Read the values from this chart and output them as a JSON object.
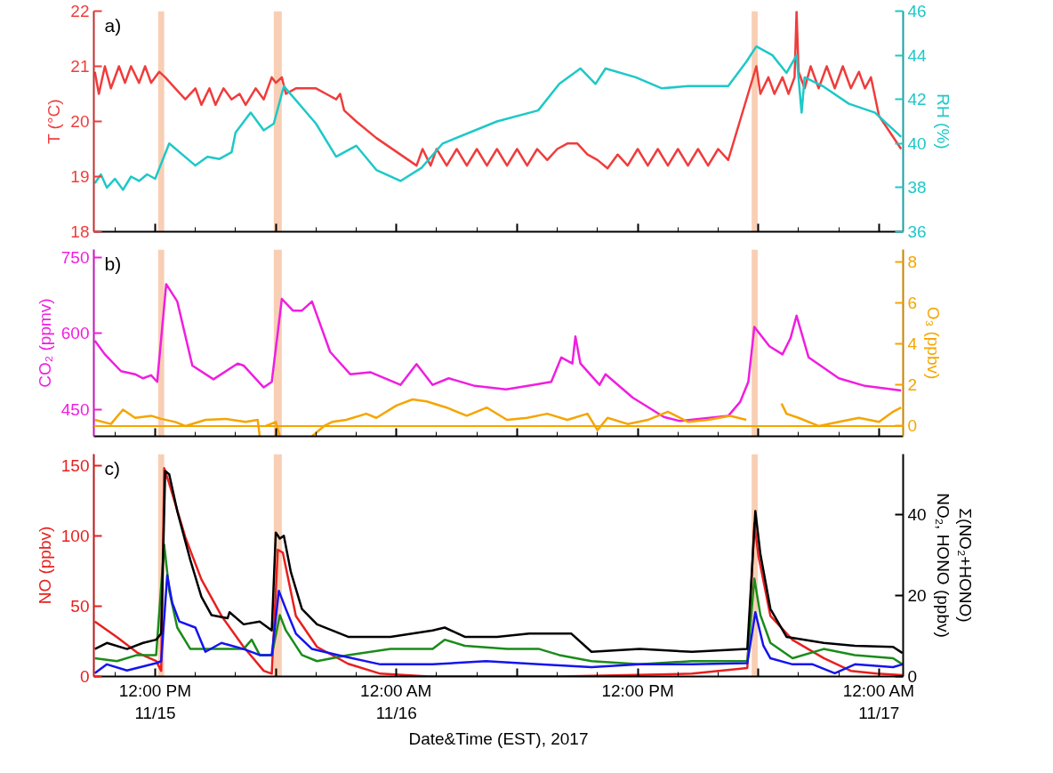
{
  "chart_data": [
    {
      "type": "line",
      "ylabel": "T (°C)",
      "y2label": "RH (%)",
      "annotations": [
        "a)"
      ],
      "tick_labels": "y",
      "xlim": [
        "2017-11-15T08:57",
        "2017-11-17T01:12"
      ],
      "xticks": [
        {
          "value": "2017-11-15T12:00",
          "label": null
        },
        {
          "value": "2017-11-15T18:00",
          "label": null
        },
        {
          "value": "2017-11-16T00:00",
          "label": null
        },
        {
          "value": "2017-11-16T06:00",
          "label": null
        },
        {
          "value": "2017-11-16T12:00",
          "label": null
        },
        {
          "value": "2017-11-16T18:00",
          "label": null
        },
        {
          "value": "2017-11-17T00:00",
          "label": null
        }
      ],
      "ylim": [
        18,
        22
      ],
      "yticks": [
        18,
        19,
        20,
        21,
        22
      ],
      "y2lim": [
        36,
        46
      ],
      "y2ticks": [
        36,
        38,
        40,
        42,
        44,
        46
      ],
      "bands": [
        {
          "axis": "x",
          "from": "2017-11-15T12:09",
          "to": "2017-11-15T12:27",
          "label": null,
          "color": "#f8cfb4"
        },
        {
          "axis": "x",
          "from": "2017-11-15T17:54",
          "to": "2017-11-15T18:18",
          "label": null,
          "color": "#f8cfb4"
        },
        {
          "axis": "x",
          "from": "2017-11-16T17:40",
          "to": "2017-11-16T17:58",
          "label": null,
          "color": "#f8cfb4"
        }
      ],
      "series": [
        {
          "color": "#f03c3c",
          "x": [
            "2017-11-15T09:00",
            "2017-11-15T09:12",
            "2017-11-15T09:30",
            "2017-11-15T09:48",
            "2017-11-15T10:12",
            "2017-11-15T10:30",
            "2017-11-15T10:48",
            "2017-11-15T11:12",
            "2017-11-15T11:30",
            "2017-11-15T11:48",
            "2017-11-15T12:12",
            "2017-11-15T12:30",
            "2017-11-15T13:00",
            "2017-11-15T13:30",
            "2017-11-15T14:00",
            "2017-11-15T14:18",
            "2017-11-15T14:42",
            "2017-11-15T15:00",
            "2017-11-15T15:24",
            "2017-11-15T15:48",
            "2017-11-15T16:12",
            "2017-11-15T16:30",
            "2017-11-15T17:00",
            "2017-11-15T17:24",
            "2017-11-15T17:48",
            "2017-11-15T18:00",
            "2017-11-15T18:18",
            "2017-11-15T18:30",
            "2017-11-15T19:00",
            "2017-11-15T20:00",
            "2017-11-15T20:30",
            "2017-11-15T21:00",
            "2017-11-15T21:12",
            "2017-11-15T21:24",
            "2017-11-15T22:00",
            "2017-11-15T23:00",
            "2017-11-16T00:00",
            "2017-11-16T01:00",
            "2017-11-16T01:18",
            "2017-11-16T01:42",
            "2017-11-16T02:00",
            "2017-11-16T02:30",
            "2017-11-16T03:00",
            "2017-11-16T03:30",
            "2017-11-16T04:00",
            "2017-11-16T04:30",
            "2017-11-16T05:00",
            "2017-11-16T05:30",
            "2017-11-16T06:00",
            "2017-11-16T06:30",
            "2017-11-16T07:00",
            "2017-11-16T07:30",
            "2017-11-16T08:00",
            "2017-11-16T08:30",
            "2017-11-16T09:00",
            "2017-11-16T09:30",
            "2017-11-16T10:00",
            "2017-11-16T10:30",
            "2017-11-16T11:00",
            "2017-11-16T11:30",
            "2017-11-16T12:00",
            "2017-11-16T12:30",
            "2017-11-16T13:00",
            "2017-11-16T13:30",
            "2017-11-16T14:00",
            "2017-11-16T14:30",
            "2017-11-16T15:00",
            "2017-11-16T15:30",
            "2017-11-16T16:00",
            "2017-11-16T16:30",
            "2017-11-16T17:54",
            "2017-11-16T18:06",
            "2017-11-16T18:30",
            "2017-11-16T18:48",
            "2017-11-16T19:12",
            "2017-11-16T19:30",
            "2017-11-16T19:48",
            "2017-11-16T19:54",
            "2017-11-16T20:00",
            "2017-11-16T20:18",
            "2017-11-16T20:36",
            "2017-11-16T21:00",
            "2017-11-16T21:24",
            "2017-11-16T21:48",
            "2017-11-16T22:12",
            "2017-11-16T22:36",
            "2017-11-16T23:00",
            "2017-11-16T23:18",
            "2017-11-16T23:36",
            "2017-11-17T00:00",
            "2017-11-17T01:06"
          ],
          "values": [
            20.9,
            20.5,
            21.0,
            20.6,
            21.0,
            20.7,
            21.0,
            20.7,
            21.0,
            20.7,
            20.9,
            20.8,
            20.6,
            20.4,
            20.6,
            20.3,
            20.6,
            20.3,
            20.6,
            20.4,
            20.5,
            20.3,
            20.6,
            20.4,
            20.8,
            20.7,
            20.8,
            20.5,
            20.6,
            20.6,
            20.5,
            20.4,
            20.5,
            20.2,
            20.0,
            19.7,
            19.45,
            19.2,
            19.5,
            19.2,
            19.5,
            19.2,
            19.5,
            19.2,
            19.5,
            19.2,
            19.5,
            19.2,
            19.5,
            19.2,
            19.5,
            19.3,
            19.5,
            19.6,
            19.6,
            19.4,
            19.3,
            19.15,
            19.4,
            19.2,
            19.5,
            19.2,
            19.5,
            19.2,
            19.5,
            19.2,
            19.5,
            19.2,
            19.5,
            19.3,
            21.0,
            20.5,
            20.8,
            20.5,
            20.8,
            20.5,
            20.8,
            22.0,
            20.9,
            20.6,
            21.0,
            20.6,
            21.0,
            20.6,
            21.0,
            20.6,
            20.9,
            20.6,
            20.8,
            20.1,
            19.5
          ]
        },
        {
          "color": "#1ec8c8",
          "axis": "y2",
          "x": [
            "2017-11-15T09:00",
            "2017-11-15T09:18",
            "2017-11-15T09:36",
            "2017-11-15T10:00",
            "2017-11-15T10:24",
            "2017-11-15T10:48",
            "2017-11-15T11:12",
            "2017-11-15T11:36",
            "2017-11-15T12:00",
            "2017-11-15T12:42",
            "2017-11-15T14:00",
            "2017-11-15T14:36",
            "2017-11-15T15:12",
            "2017-11-15T15:36",
            "2017-11-15T15:48",
            "2017-11-15T16:00",
            "2017-11-15T16:45",
            "2017-11-15T17:24",
            "2017-11-15T17:54",
            "2017-11-15T18:24",
            "2017-11-15T20:00",
            "2017-11-15T21:00",
            "2017-11-15T22:00",
            "2017-11-15T23:00",
            "2017-11-16T00:12",
            "2017-11-16T01:15",
            "2017-11-16T02:18",
            "2017-11-16T05:00",
            "2017-11-16T07:03",
            "2017-11-16T08:06",
            "2017-11-16T09:09",
            "2017-11-16T09:54",
            "2017-11-16T10:24",
            "2017-11-16T11:54",
            "2017-11-16T13:12",
            "2017-11-16T14:30",
            "2017-11-16T16:30",
            "2017-11-16T17:24",
            "2017-11-16T17:54",
            "2017-11-16T18:42",
            "2017-11-16T19:24",
            "2017-11-16T19:54",
            "2017-11-16T20:09",
            "2017-11-16T20:18",
            "2017-11-16T21:12",
            "2017-11-16T22:30",
            "2017-11-16T23:48",
            "2017-11-17T01:06"
          ],
          "values": [
            38.2,
            38.6,
            38.0,
            38.4,
            37.9,
            38.5,
            38.3,
            38.6,
            38.4,
            40.0,
            39.0,
            39.4,
            39.3,
            39.5,
            39.6,
            40.5,
            41.4,
            40.6,
            40.9,
            42.6,
            40.9,
            39.4,
            39.9,
            38.8,
            38.3,
            38.9,
            40.0,
            41.0,
            41.5,
            42.7,
            43.4,
            42.7,
            43.4,
            43.0,
            42.5,
            42.6,
            42.6,
            43.7,
            44.4,
            44.0,
            43.2,
            44.0,
            41.4,
            43.0,
            42.6,
            41.8,
            41.4,
            40.3
          ]
        }
      ]
    },
    {
      "type": "line",
      "ylabel": "CO₂ (ppmv)",
      "y2label": "O₃ (ppbv)",
      "annotations": [
        "b)"
      ],
      "tick_labels": "y",
      "xlim": [
        "2017-11-15T08:57",
        "2017-11-17T01:12"
      ],
      "xticks": [
        {
          "value": "2017-11-15T12:00",
          "label": null
        },
        {
          "value": "2017-11-15T18:00",
          "label": null
        },
        {
          "value": "2017-11-16T00:00",
          "label": null
        },
        {
          "value": "2017-11-16T06:00",
          "label": null
        },
        {
          "value": "2017-11-16T12:00",
          "label": null
        },
        {
          "value": "2017-11-16T18:00",
          "label": null
        },
        {
          "value": "2017-11-17T00:00",
          "label": null
        }
      ],
      "ylim": [
        398,
        765
      ],
      "yticks": [
        450,
        600,
        750
      ],
      "y2lim": [
        -0.5,
        8.6
      ],
      "y2ticks": [
        0,
        2,
        4,
        6,
        8
      ],
      "ref_lines": [
        {
          "axis": "y2",
          "value": 0,
          "label": null,
          "color": "#f5a500"
        }
      ],
      "bands": [
        {
          "axis": "x",
          "from": "2017-11-15T12:09",
          "to": "2017-11-15T12:27",
          "label": null,
          "color": "#f8cfb4"
        },
        {
          "axis": "x",
          "from": "2017-11-15T17:54",
          "to": "2017-11-15T18:18",
          "label": null,
          "color": "#f8cfb4"
        },
        {
          "axis": "x",
          "from": "2017-11-16T17:40",
          "to": "2017-11-16T17:58",
          "label": null,
          "color": "#f8cfb4"
        }
      ],
      "series": [
        {
          "color": "#f01ee0",
          "x": [
            "2017-11-15T09:00",
            "2017-11-15T09:30",
            "2017-11-15T10:18",
            "2017-11-15T11:00",
            "2017-11-15T11:24",
            "2017-11-15T11:48",
            "2017-11-15T12:06",
            "2017-11-15T12:33",
            "2017-11-15T13:06",
            "2017-11-15T13:51",
            "2017-11-15T14:54",
            "2017-11-15T16:06",
            "2017-11-15T16:24",
            "2017-11-15T17:24",
            "2017-11-15T17:48",
            "2017-11-15T18:18",
            "2017-11-15T18:51",
            "2017-11-15T19:18",
            "2017-11-15T19:48",
            "2017-11-15T20:42",
            "2017-11-15T21:42",
            "2017-11-15T22:42",
            "2017-11-16T00:12",
            "2017-11-16T01:00",
            "2017-11-16T01:48",
            "2017-11-16T02:36",
            "2017-11-16T03:54",
            "2017-11-16T05:27",
            "2017-11-16T06:48",
            "2017-11-16T07:42",
            "2017-11-16T08:12",
            "2017-11-16T08:45",
            "2017-11-16T08:54",
            "2017-11-16T09:09",
            "2017-11-16T10:06",
            "2017-11-16T10:24",
            "2017-11-16T11:45",
            "2017-11-16T13:18",
            "2017-11-16T14:06",
            "2017-11-16T16:30",
            "2017-11-16T17:06",
            "2017-11-16T17:30",
            "2017-11-16T17:48",
            "2017-11-16T18:33",
            "2017-11-16T19:12",
            "2017-11-16T19:36",
            "2017-11-16T19:54",
            "2017-11-16T20:30",
            "2017-11-16T22:00",
            "2017-11-16T23:18",
            "2017-11-17T01:06"
          ],
          "values": [
            586,
            559,
            526,
            520,
            512,
            518,
            505,
            697,
            663,
            537,
            510,
            541,
            537,
            494,
            505,
            668,
            645,
            645,
            663,
            564,
            520,
            524,
            499,
            540,
            499,
            512,
            497,
            490,
            499,
            505,
            553,
            541,
            594,
            541,
            499,
            520,
            474,
            436,
            428,
            438,
            466,
            505,
            613,
            575,
            559,
            591,
            635,
            553,
            512,
            497,
            488
          ]
        },
        {
          "color": "#f5a500",
          "axis": "y2",
          "x": [
            "2017-11-15T09:00",
            "2017-11-15T09:48",
            "2017-11-15T10:24",
            "2017-11-15T11:00",
            "2017-11-15T11:48",
            "2017-11-15T12:18",
            "2017-11-15T13:00",
            "2017-11-15T13:30",
            "2017-11-15T14:30",
            "2017-11-15T15:30",
            "2017-11-15T16:30",
            "2017-11-15T17:06",
            "2017-11-15T17:12",
            "2017-11-15T17:21",
            "2017-11-15T17:30",
            "2017-11-15T18:00",
            "2017-11-15T18:12",
            "2017-11-15T19:00",
            "2017-11-15T19:48",
            "2017-11-15T20:24",
            "2017-11-15T20:48",
            "2017-11-15T21:30",
            "2017-11-15T22:30",
            "2017-11-15T23:00",
            "2017-11-16T00:00",
            "2017-11-16T00:48",
            "2017-11-16T01:30",
            "2017-11-16T02:30",
            "2017-11-16T03:30",
            "2017-11-16T04:30",
            "2017-11-16T05:30",
            "2017-11-16T06:30",
            "2017-11-16T07:30",
            "2017-11-16T08:30",
            "2017-11-16T09:30",
            "2017-11-16T10:00",
            "2017-11-16T10:30",
            "2017-11-16T11:30",
            "2017-11-16T12:30",
            "2017-11-16T13:30",
            "2017-11-16T14:30",
            "2017-11-16T15:30",
            "2017-11-16T16:36",
            "2017-11-16T17:24",
            "2017-11-16T18:00",
            "2017-11-16T19:09",
            "2017-11-16T19:24",
            "2017-11-16T20:00",
            "2017-11-16T21:00",
            "2017-11-16T22:00",
            "2017-11-16T23:00",
            "2017-11-17T00:00",
            "2017-11-17T00:42",
            "2017-11-17T01:06"
          ],
          "values": [
            0.3,
            0.1,
            0.8,
            0.4,
            0.5,
            0.35,
            0.2,
            0.0,
            0.3,
            0.35,
            0.2,
            0.3,
            -0.5,
            null,
            0.0,
            0.2,
            -0.5,
            null,
            -0.5,
            0.0,
            0.2,
            0.3,
            0.6,
            0.4,
            1.0,
            1.3,
            1.2,
            0.9,
            0.5,
            0.9,
            0.3,
            0.4,
            0.6,
            0.3,
            0.6,
            -0.2,
            0.4,
            0.1,
            0.3,
            0.7,
            0.2,
            0.3,
            0.5,
            0.3,
            null,
            1.1,
            0.6,
            0.4,
            0.0,
            0.2,
            0.4,
            0.2,
            0.7,
            0.9
          ]
        }
      ]
    },
    {
      "type": "line",
      "ylabel": "NO (ppbv)",
      "y2label": "Σ(NO₂+HONO)\nNO₂, HONO (ppbv)",
      "xlabel": "Date&Time (EST), 2017",
      "annotations": [
        "c)"
      ],
      "xlim": [
        "2017-11-15T08:57",
        "2017-11-17T01:12"
      ],
      "xticks": [
        {
          "value": "2017-11-15T12:00",
          "label": "12:00 PM\n11/15"
        },
        {
          "value": "2017-11-15T18:00",
          "label": null
        },
        {
          "value": "2017-11-16T00:00",
          "label": "12:00 AM\n11/16"
        },
        {
          "value": "2017-11-16T06:00",
          "label": null
        },
        {
          "value": "2017-11-16T12:00",
          "label": "12:00 PM"
        },
        {
          "value": "2017-11-16T18:00",
          "label": null
        },
        {
          "value": "2017-11-17T00:00",
          "label": "12:00 AM\n11/17"
        }
      ],
      "ylim": [
        0,
        158
      ],
      "yticks": [
        0,
        50,
        100,
        150
      ],
      "y2lim": [
        0,
        55
      ],
      "y2ticks": [
        0,
        20,
        40
      ],
      "bands": [
        {
          "axis": "x",
          "from": "2017-11-15T12:09",
          "to": "2017-11-15T12:27",
          "label": null,
          "color": "#f8cfb4"
        },
        {
          "axis": "x",
          "from": "2017-11-15T17:54",
          "to": "2017-11-15T18:18",
          "label": null,
          "color": "#f8cfb4"
        },
        {
          "axis": "x",
          "from": "2017-11-16T17:40",
          "to": "2017-11-16T17:58",
          "label": null,
          "color": "#f8cfb4"
        }
      ],
      "series": [
        {
          "color": "#e8201e",
          "x": [
            "2017-11-15T09:00",
            "2017-11-15T10:06",
            "2017-11-15T11:06",
            "2017-11-15T12:03",
            "2017-11-15T12:18",
            "2017-11-15T12:27",
            "2017-11-15T12:42",
            "2017-11-15T13:30",
            "2017-11-15T14:18",
            "2017-11-15T15:18",
            "2017-11-15T16:24",
            "2017-11-15T17:24",
            "2017-11-15T17:48",
            "2017-11-15T18:06",
            "2017-11-15T18:21",
            "2017-11-15T19:00",
            "2017-11-15T20:03",
            "2017-11-15T21:36",
            "2017-11-15T23:12",
            "2017-11-16T01:36",
            "2017-11-16T08:06",
            "2017-11-16T14:42",
            "2017-11-16T17:27",
            "2017-11-16T17:48",
            "2017-11-16T18:00",
            "2017-11-16T18:36",
            "2017-11-16T19:42",
            "2017-11-16T21:15",
            "2017-11-16T22:36",
            "2017-11-16T23:54",
            "2017-11-17T01:10"
          ],
          "values": [
            39,
            28,
            17,
            11,
            4,
            148,
            137,
            99,
            69,
            43,
            21,
            4,
            2,
            90,
            88,
            43,
            21,
            9,
            2,
            0,
            0,
            2,
            6,
            109,
            86,
            43,
            26,
            13,
            4,
            2,
            1
          ]
        },
        {
          "color": "#1a8c1a",
          "axis": "y2",
          "x": [
            "2017-11-15T09:00",
            "2017-11-15T10:06",
            "2017-11-15T11:06",
            "2017-11-15T12:03",
            "2017-11-15T12:27",
            "2017-11-15T12:42",
            "2017-11-15T13:06",
            "2017-11-15T13:45",
            "2017-11-15T14:48",
            "2017-11-15T16:24",
            "2017-11-15T16:48",
            "2017-11-15T17:12",
            "2017-11-15T17:48",
            "2017-11-15T18:12",
            "2017-11-15T18:30",
            "2017-11-15T19:18",
            "2017-11-15T20:03",
            "2017-11-15T21:36",
            "2017-11-15T23:42",
            "2017-11-16T01:48",
            "2017-11-16T02:24",
            "2017-11-16T03:24",
            "2017-11-16T05:30",
            "2017-11-16T07:06",
            "2017-11-16T08:06",
            "2017-11-16T09:42",
            "2017-11-16T12:06",
            "2017-11-16T14:42",
            "2017-11-16T17:27",
            "2017-11-16T17:48",
            "2017-11-16T18:06",
            "2017-11-16T18:36",
            "2017-11-16T19:42",
            "2017-11-16T21:15",
            "2017-11-16T22:48",
            "2017-11-17T00:42",
            "2017-11-17T01:10"
          ],
          "values": [
            4.5,
            3.8,
            5.3,
            5.3,
            32.6,
            21.2,
            12.1,
            6.8,
            6.8,
            6.8,
            9.1,
            5.3,
            5.3,
            15.2,
            11.4,
            5.3,
            3.8,
            5.3,
            6.8,
            6.8,
            9.1,
            7.6,
            6.8,
            6.8,
            5.3,
            3.8,
            3.0,
            3.8,
            3.8,
            24.2,
            15.2,
            8.3,
            4.5,
            6.8,
            5.3,
            4.5,
            3.0
          ]
        },
        {
          "color": "#1414f0",
          "axis": "y2",
          "x": [
            "2017-11-15T09:00",
            "2017-11-15T09:36",
            "2017-11-15T10:36",
            "2017-11-15T12:03",
            "2017-11-15T12:18",
            "2017-11-15T12:36",
            "2017-11-15T12:51",
            "2017-11-15T13:12",
            "2017-11-15T14:00",
            "2017-11-15T14:30",
            "2017-11-15T15:18",
            "2017-11-15T16:24",
            "2017-11-15T17:12",
            "2017-11-15T17:48",
            "2017-11-15T18:09",
            "2017-11-15T18:30",
            "2017-11-15T19:00",
            "2017-11-15T19:48",
            "2017-11-15T21:06",
            "2017-11-15T23:12",
            "2017-11-16T01:48",
            "2017-11-16T04:27",
            "2017-11-16T07:06",
            "2017-11-16T09:42",
            "2017-11-16T12:06",
            "2017-11-16T14:42",
            "2017-11-16T17:27",
            "2017-11-16T17:51",
            "2017-11-16T18:15",
            "2017-11-16T18:36",
            "2017-11-16T19:42",
            "2017-11-16T20:42",
            "2017-11-16T21:48",
            "2017-11-16T22:48",
            "2017-11-17T00:42",
            "2017-11-17T01:10"
          ],
          "values": [
            0.8,
            3.0,
            1.5,
            3.3,
            3.8,
            25.0,
            18.2,
            13.6,
            12.1,
            6.1,
            8.3,
            6.8,
            5.3,
            5.3,
            21.2,
            16.7,
            10.6,
            6.8,
            5.3,
            3.0,
            3.0,
            3.8,
            3.0,
            2.3,
            3.0,
            3.0,
            3.3,
            15.9,
            7.6,
            4.5,
            3.0,
            3.0,
            0.8,
            3.0,
            2.3,
            3.0
          ]
        },
        {
          "color": "#000000",
          "axis": "y2",
          "x": [
            "2017-11-15T09:00",
            "2017-11-15T09:36",
            "2017-11-15T10:36",
            "2017-11-15T11:24",
            "2017-11-15T12:03",
            "2017-11-15T12:18",
            "2017-11-15T12:30",
            "2017-11-15T12:42",
            "2017-11-15T13:06",
            "2017-11-15T13:45",
            "2017-11-15T14:18",
            "2017-11-15T14:48",
            "2017-11-15T15:36",
            "2017-11-15T15:42",
            "2017-11-15T16:24",
            "2017-11-15T17:12",
            "2017-11-15T17:48",
            "2017-11-15T18:00",
            "2017-11-15T18:12",
            "2017-11-15T18:24",
            "2017-11-15T18:45",
            "2017-11-15T19:18",
            "2017-11-15T20:03",
            "2017-11-15T21:36",
            "2017-11-15T23:42",
            "2017-11-16T01:48",
            "2017-11-16T02:24",
            "2017-11-16T03:24",
            "2017-11-16T05:00",
            "2017-11-16T06:36",
            "2017-11-16T07:36",
            "2017-11-16T08:42",
            "2017-11-16T09:42",
            "2017-11-16T12:06",
            "2017-11-16T14:42",
            "2017-11-16T17:27",
            "2017-11-16T17:51",
            "2017-11-16T18:06",
            "2017-11-16T18:36",
            "2017-11-16T19:24",
            "2017-11-16T21:15",
            "2017-11-16T22:48",
            "2017-11-17T00:42",
            "2017-11-17T01:10"
          ],
          "values": [
            6.8,
            8.3,
            6.8,
            8.3,
            9.1,
            10.6,
            50.8,
            50.0,
            40.9,
            28.8,
            19.7,
            15.2,
            14.4,
            15.9,
            12.9,
            13.6,
            11.4,
            35.6,
            34.1,
            34.8,
            25.8,
            16.7,
            12.9,
            9.8,
            9.8,
            11.4,
            12.1,
            9.8,
            9.8,
            10.6,
            10.6,
            10.6,
            6.1,
            6.8,
            6.1,
            6.8,
            40.9,
            30.3,
            16.7,
            9.8,
            8.3,
            7.6,
            7.3,
            5.8
          ]
        }
      ]
    }
  ]
}
